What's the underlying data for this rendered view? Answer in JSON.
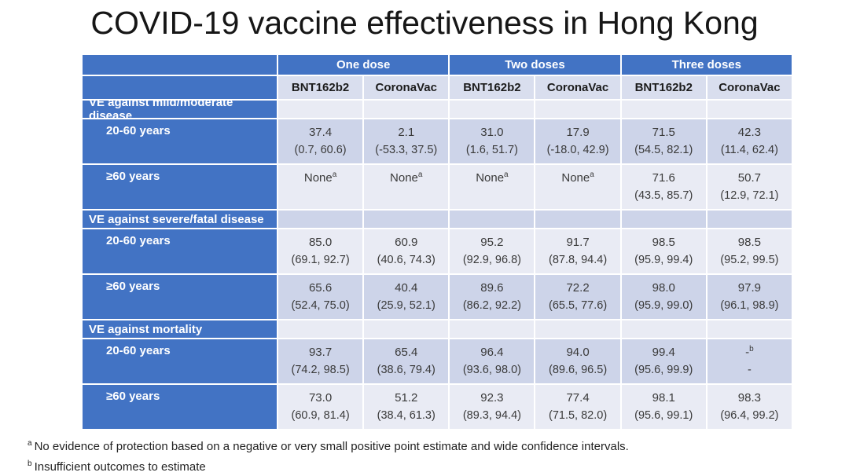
{
  "title": "COVID-19 vaccine effectiveness in Hong Kong",
  "colors": {
    "accent_blue": "#4273C4",
    "band_dark": "#CDD4E9",
    "band_light": "#E9EBF4",
    "brand_header_bg": "#D9DEEE",
    "header_text": "#FFFFFF",
    "data_text": "#3A3A3A"
  },
  "table": {
    "dose_groups": [
      {
        "label": "One dose"
      },
      {
        "label": "Two doses"
      },
      {
        "label": "Three doses"
      }
    ],
    "brand_headers": [
      "BNT162b2",
      "CoronaVac",
      "BNT162b2",
      "CoronaVac",
      "BNT162b2",
      "CoronaVac"
    ],
    "sections": [
      {
        "label": "VE against mild/moderate disease",
        "rows": [
          {
            "label": "20-60 years",
            "cells": [
              {
                "value": "37.4",
                "ci": "(0.7, 60.6)"
              },
              {
                "value": "2.1",
                "ci": "(-53.3, 37.5)"
              },
              {
                "value": "31.0",
                "ci": "(1.6, 51.7)"
              },
              {
                "value": "17.9",
                "ci": "(-18.0, 42.9)"
              },
              {
                "value": "71.5",
                "ci": "(54.5, 82.1)"
              },
              {
                "value": "42.3",
                "ci": "(11.4, 62.4)"
              }
            ]
          },
          {
            "label": "≥60 years",
            "cells": [
              {
                "value": "None",
                "sup": "a"
              },
              {
                "value": "None",
                "sup": "a"
              },
              {
                "value": "None",
                "sup": "a"
              },
              {
                "value": "None",
                "sup": "a"
              },
              {
                "value": "71.6",
                "ci": "(43.5, 85.7)"
              },
              {
                "value": "50.7",
                "ci": "(12.9, 72.1)"
              }
            ]
          }
        ]
      },
      {
        "label": "VE against severe/fatal disease",
        "rows": [
          {
            "label": "20-60 years",
            "cells": [
              {
                "value": "85.0",
                "ci": "(69.1, 92.7)"
              },
              {
                "value": "60.9",
                "ci": "(40.6, 74.3)"
              },
              {
                "value": "95.2",
                "ci": "(92.9, 96.8)"
              },
              {
                "value": "91.7",
                "ci": "(87.8, 94.4)"
              },
              {
                "value": "98.5",
                "ci": "(95.9, 99.4)"
              },
              {
                "value": "98.5",
                "ci": "(95.2, 99.5)"
              }
            ]
          },
          {
            "label": "≥60 years",
            "cells": [
              {
                "value": "65.6",
                "ci": "(52.4, 75.0)"
              },
              {
                "value": "40.4",
                "ci": "(25.9, 52.1)"
              },
              {
                "value": "89.6",
                "ci": "(86.2, 92.2)"
              },
              {
                "value": "72.2",
                "ci": "(65.5, 77.6)"
              },
              {
                "value": "98.0",
                "ci": "(95.9, 99.0)"
              },
              {
                "value": "97.9",
                "ci": "(96.1, 98.9)"
              }
            ]
          }
        ]
      },
      {
        "label": "VE against mortality",
        "rows": [
          {
            "label": "20-60 years",
            "cells": [
              {
                "value": "93.7",
                "ci": "(74.2, 98.5)"
              },
              {
                "value": "65.4",
                "ci": "(38.6, 79.4)"
              },
              {
                "value": "96.4",
                "ci": "(93.6, 98.0)"
              },
              {
                "value": "94.0",
                "ci": "(89.6, 96.5)"
              },
              {
                "value": "99.4",
                "ci": "(95.6, 99.9)"
              },
              {
                "value": "-",
                "sup": "b",
                "ci": "-"
              }
            ]
          },
          {
            "label": "≥60 years",
            "cells": [
              {
                "value": "73.0",
                "ci": "(60.9, 81.4)"
              },
              {
                "value": "51.2",
                "ci": "(38.4, 61.3)"
              },
              {
                "value": "92.3",
                "ci": "(89.3, 94.4)"
              },
              {
                "value": "77.4",
                "ci": "(71.5, 82.0)"
              },
              {
                "value": "98.1",
                "ci": "(95.6, 99.1)"
              },
              {
                "value": "98.3",
                "ci": "(96.4, 99.2)"
              }
            ]
          }
        ]
      }
    ]
  },
  "footnotes": [
    {
      "sup": "a",
      "text": "No evidence of protection based on a negative or very small positive point estimate and wide confidence intervals."
    },
    {
      "sup": "b",
      "text": "Insufficient outcomes to estimate"
    }
  ]
}
